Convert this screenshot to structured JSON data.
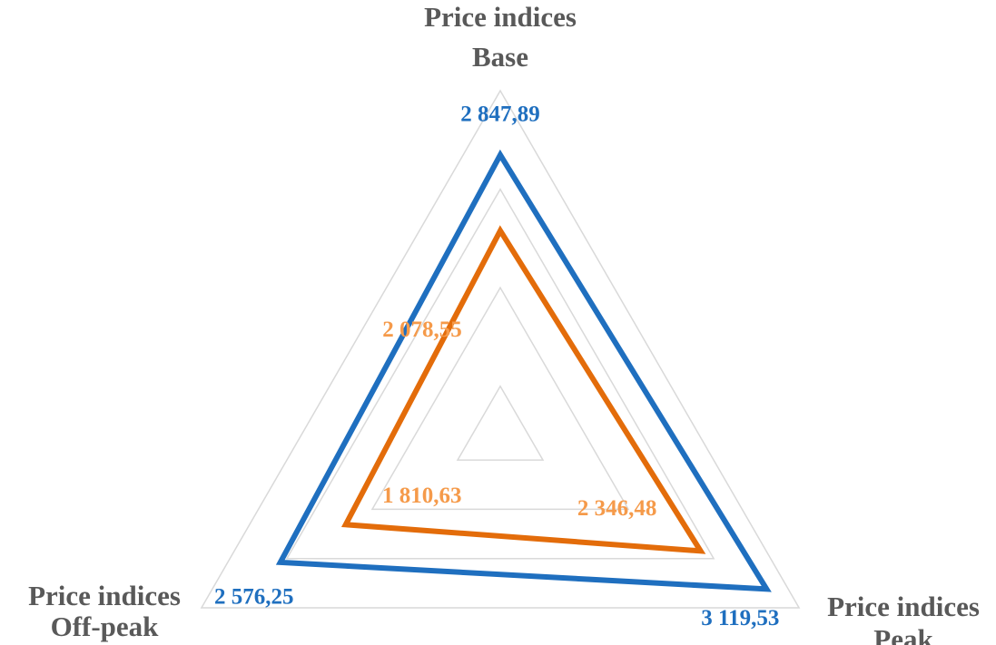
{
  "chart_data": {
    "type": "radar",
    "categories": [
      [
        "Price indices",
        "Base"
      ],
      [
        "Price indices",
        "Peak"
      ],
      [
        "Price indices",
        "Off-peak"
      ]
    ],
    "ylim": [
      0,
      3500
    ],
    "yticks": [
      500,
      1500,
      2500,
      3500
    ],
    "grid": true,
    "series": [
      {
        "color": "#1f6fbf",
        "label_color": "#1f6fbf",
        "values": [
          2847.89,
          3119.53,
          2576.25
        ],
        "value_labels": [
          "2 847,89",
          "3 119,53",
          "2 576,25"
        ]
      },
      {
        "color": "#e36c0a",
        "label_color": "#f59a4a",
        "values": [
          2078.55,
          2346.48,
          1810.63
        ],
        "value_labels": [
          "2 078,55",
          "2 346,48",
          "1 810,63"
        ]
      }
    ]
  }
}
